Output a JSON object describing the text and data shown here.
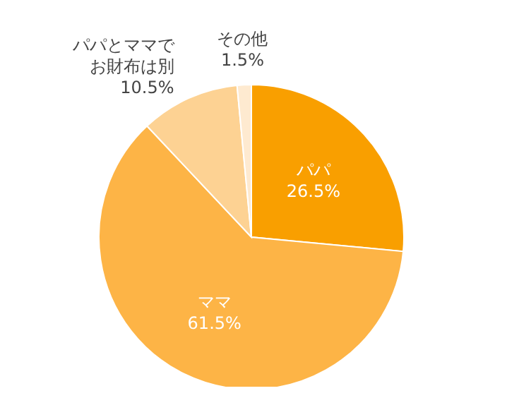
{
  "chart_data": {
    "type": "pie",
    "categories": [
      "パパ",
      "ママ",
      "パパとママでお財布は別",
      "その他"
    ],
    "values": [
      26.5,
      61.5,
      10.5,
      1.5
    ],
    "value_labels": [
      "26.5%",
      "61.5%",
      "10.5%",
      "1.5%"
    ],
    "colors": [
      "#f99f00",
      "#fdb446",
      "#fdd293",
      "#feead0"
    ]
  }
}
